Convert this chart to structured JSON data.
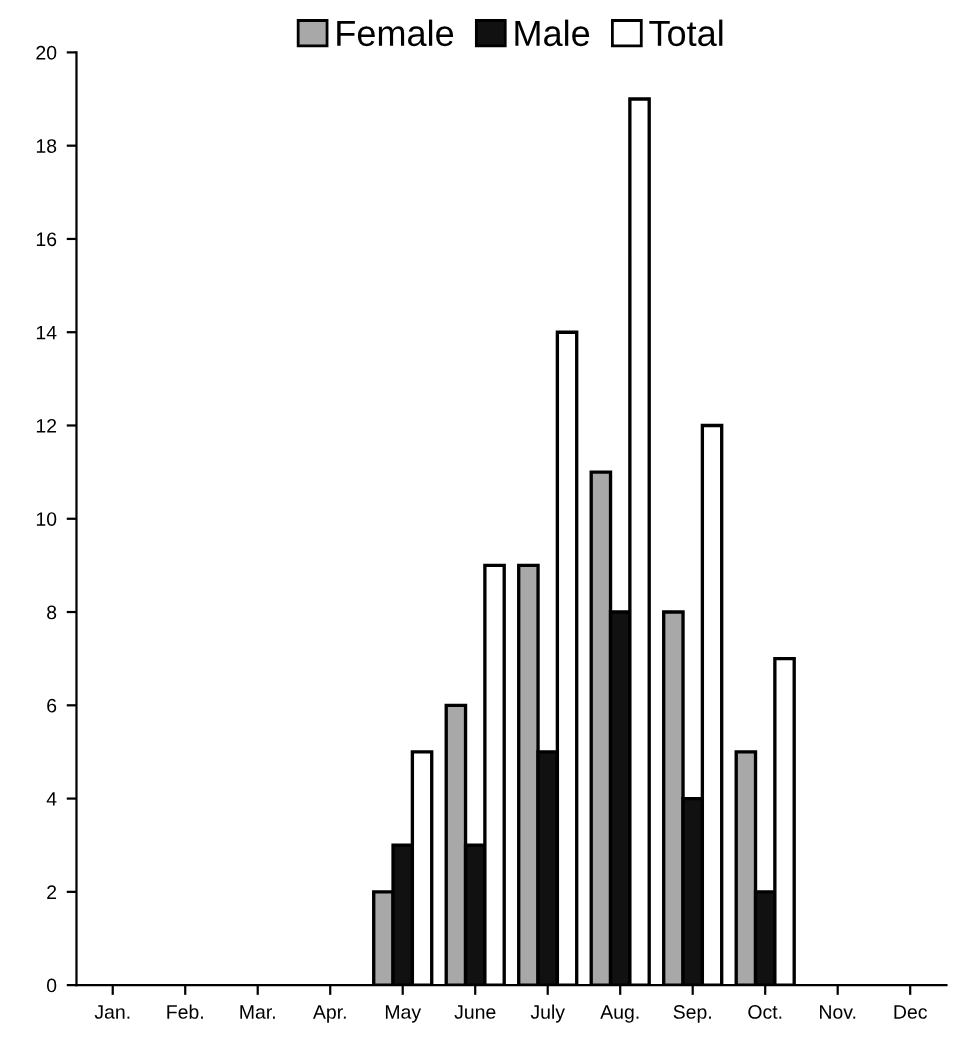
{
  "chart_data": {
    "type": "bar",
    "categories": [
      "Jan.",
      "Feb.",
      "Mar.",
      "Apr.",
      "May",
      "June",
      "July",
      "Aug.",
      "Sep.",
      "Oct.",
      "Nov.",
      "Dec"
    ],
    "series": [
      {
        "name": "Female",
        "color": "#a8a8a8",
        "values": [
          0,
          0,
          0,
          0,
          2,
          6,
          9,
          11,
          8,
          5,
          0,
          0
        ]
      },
      {
        "name": "Male",
        "color": "#111111",
        "values": [
          0,
          0,
          0,
          0,
          3,
          3,
          5,
          8,
          4,
          2,
          0,
          0
        ]
      },
      {
        "name": "Total",
        "color": "#ffffff",
        "values": [
          0,
          0,
          0,
          0,
          5,
          9,
          14,
          19,
          12,
          7,
          0,
          0
        ]
      }
    ],
    "ylim": [
      0,
      20
    ],
    "yticks": [
      0,
      2,
      4,
      6,
      8,
      10,
      12,
      14,
      16,
      18,
      20
    ],
    "grid": false,
    "legend": "top"
  }
}
